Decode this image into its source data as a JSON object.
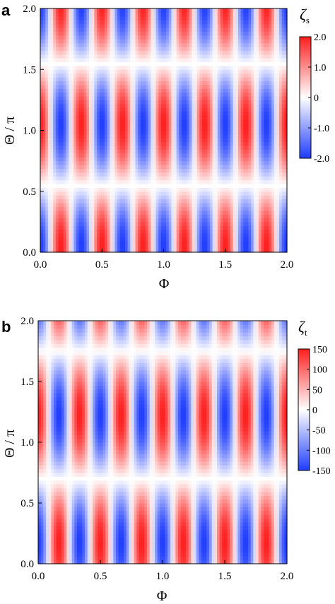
{
  "chart_data": [
    {
      "type": "heatmap",
      "panel_label": "a",
      "xlabel": "Φ",
      "ylabel": "Θ / π",
      "xlim": [
        0.0,
        2.0
      ],
      "ylim": [
        0.0,
        2.0
      ],
      "xticks": [
        "0.0",
        "0.5",
        "1.0",
        "1.5",
        "2.0"
      ],
      "yticks": [
        "0.0",
        "0.5",
        "1.0",
        "1.5",
        "2.0"
      ],
      "colorbar": {
        "title": "ζ",
        "subscript": "s",
        "range": [
          -2.0,
          2.0
        ],
        "ticks": [
          "2.0",
          "1.0",
          "0",
          "-1.0",
          "-2.0"
        ],
        "colormap": [
          "#1e3cff",
          "#ffffff",
          "#ff1e1e"
        ]
      },
      "field": {
        "description_pattern": "sin(12πΦ·0.5 + phase) · envelope(Θ)",
        "phi_stripes_count": 12,
        "theta_node_positions": [
          0.55,
          1.55
        ],
        "amplitude_max": 2.0
      }
    },
    {
      "type": "heatmap",
      "panel_label": "b",
      "xlabel": "Φ",
      "ylabel": "Θ / π",
      "xlim": [
        0.0,
        2.0
      ],
      "ylim": [
        0.0,
        2.0
      ],
      "xticks": [
        "0.0",
        "0.5",
        "1.0",
        "1.5",
        "2.0"
      ],
      "yticks": [
        "0.0",
        "0.5",
        "1.0",
        "1.5",
        "2.0"
      ],
      "colorbar": {
        "title": "ζ",
        "subscript": "t",
        "range": [
          -150,
          150
        ],
        "ticks": [
          "150",
          "100",
          "50",
          "0",
          "-50",
          "-100",
          "-150"
        ],
        "colormap": [
          "#1e3cff",
          "#ffffff",
          "#ff1e1e"
        ]
      },
      "field": {
        "phi_stripes_count": 12,
        "theta_node_positions": [
          0.7,
          1.75
        ],
        "amplitude_max": 150
      }
    }
  ]
}
